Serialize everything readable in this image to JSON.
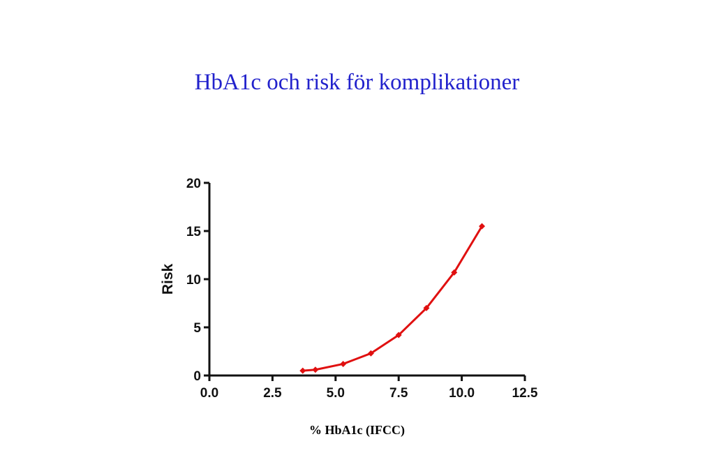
{
  "title": "HbA1c och risk för komplikationer",
  "colors": {
    "title": "#2222cc",
    "series": "#e01010",
    "axis": "#111111"
  },
  "chart_data": {
    "type": "line",
    "title": "HbA1c och risk för komplikationer",
    "xlabel": "% HbA1c (IFCC)",
    "ylabel": "Risk",
    "xlim": [
      0,
      12.5
    ],
    "ylim": [
      0,
      20
    ],
    "x_ticks": [
      "0.0",
      "2.5",
      "5.0",
      "7.5",
      "10.0",
      "12.5"
    ],
    "y_ticks": [
      "0",
      "5",
      "10",
      "15",
      "20"
    ],
    "grid": false,
    "legend": "none",
    "series": [
      {
        "marker": "diamond",
        "x": [
          3.7,
          4.2,
          5.3,
          6.4,
          7.5,
          8.6,
          9.7,
          10.8
        ],
        "y": [
          0.5,
          0.6,
          1.2,
          2.3,
          4.2,
          7.0,
          10.7,
          15.5
        ]
      }
    ]
  }
}
